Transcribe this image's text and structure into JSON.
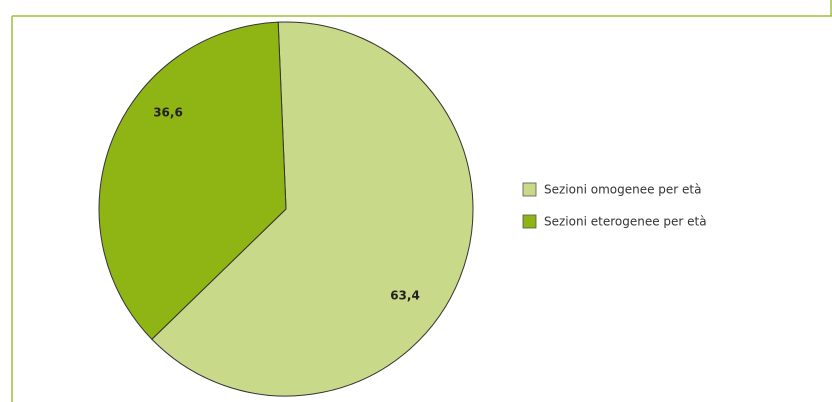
{
  "chart_data": {
    "type": "pie",
    "categories": [
      "Sezioni omogenee per età",
      "Sezioni eterogenee per età"
    ],
    "values": [
      63.4,
      36.6
    ],
    "value_labels": [
      "63,4",
      "36,6"
    ],
    "colors": [
      "#c8d98a",
      "#8fb514"
    ],
    "legend": "right"
  }
}
